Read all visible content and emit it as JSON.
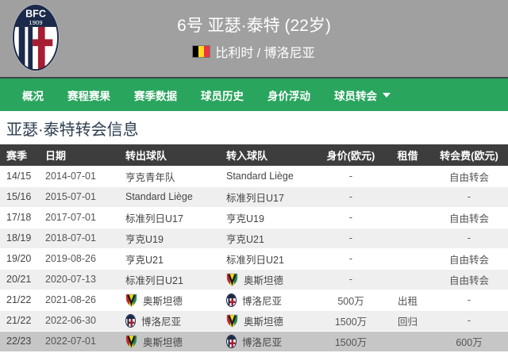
{
  "header": {
    "title": "6号 亚瑟·泰特 (22岁)",
    "subtitle": "比利时 / 博洛尼亚",
    "flag_icon": "belgium-flag-icon",
    "logo": {
      "initials": "BFC",
      "year": "1909"
    },
    "bg_color": "#a0a0a0"
  },
  "nav": {
    "bg_color": "#2aa55e",
    "items": [
      {
        "label": "概况"
      },
      {
        "label": "赛程赛果"
      },
      {
        "label": "赛季数据"
      },
      {
        "label": "球员历史"
      },
      {
        "label": "身价浮动"
      },
      {
        "label": "球员转会",
        "dropdown_icon": "chevron-down-icon"
      }
    ]
  },
  "section": {
    "title": "亚瑟·泰特转会信息"
  },
  "table": {
    "header_bg": "#3d3d3d",
    "highlight_row_bg": "#c6c6c6",
    "headers": [
      "赛季",
      "日期",
      "转出球队",
      "转入球队",
      "身价(欧元)",
      "租借",
      "转会费(欧元)"
    ],
    "rows": [
      {
        "season": "14/15",
        "date": "2014-07-01",
        "from": {
          "name": "亨克青年队",
          "icon": null
        },
        "to": {
          "name": "Standard Liège",
          "icon": null
        },
        "value": "-",
        "loan": "",
        "fee": "自由转会",
        "highlight": false
      },
      {
        "season": "15/16",
        "date": "2015-07-01",
        "from": {
          "name": "Standard Liège",
          "icon": null
        },
        "to": {
          "name": "标准列日U17",
          "icon": null
        },
        "value": "-",
        "loan": "",
        "fee": "-",
        "highlight": false
      },
      {
        "season": "17/18",
        "date": "2017-07-01",
        "from": {
          "name": "标准列日U17",
          "icon": null
        },
        "to": {
          "name": "亨克U19",
          "icon": null
        },
        "value": "-",
        "loan": "",
        "fee": "自由转会",
        "highlight": false
      },
      {
        "season": "18/19",
        "date": "2018-07-01",
        "from": {
          "name": "亨克U19",
          "icon": null
        },
        "to": {
          "name": "亨克U21",
          "icon": null
        },
        "value": "-",
        "loan": "",
        "fee": "-",
        "highlight": false
      },
      {
        "season": "19/20",
        "date": "2019-08-26",
        "from": {
          "name": "亨克U21",
          "icon": null
        },
        "to": {
          "name": "标准列日U21",
          "icon": null
        },
        "value": "-",
        "loan": "",
        "fee": "自由转会",
        "highlight": false
      },
      {
        "season": "20/21",
        "date": "2020-07-13",
        "from": {
          "name": "标准列日U21",
          "icon": null
        },
        "to": {
          "name": "奥斯坦德",
          "icon": "oostende-crest-icon"
        },
        "value": "-",
        "loan": "",
        "fee": "自由转会",
        "highlight": false
      },
      {
        "season": "21/22",
        "date": "2021-08-26",
        "from": {
          "name": "奥斯坦德",
          "icon": "oostende-crest-icon"
        },
        "to": {
          "name": "博洛尼亚",
          "icon": "bologna-crest-icon"
        },
        "value": "500万",
        "loan": "出租",
        "fee": "-",
        "highlight": false
      },
      {
        "season": "21/22",
        "date": "2022-06-30",
        "from": {
          "name": "博洛尼亚",
          "icon": "bologna-crest-icon"
        },
        "to": {
          "name": "奥斯坦德",
          "icon": "oostende-crest-icon"
        },
        "value": "1500万",
        "loan": "回归",
        "fee": "-",
        "highlight": false
      },
      {
        "season": "22/23",
        "date": "2022-07-01",
        "from": {
          "name": "奥斯坦德",
          "icon": "oostende-crest-icon"
        },
        "to": {
          "name": "博洛尼亚",
          "icon": "bologna-crest-icon"
        },
        "value": "1500万",
        "loan": "",
        "fee": "600万",
        "highlight": true
      }
    ]
  }
}
